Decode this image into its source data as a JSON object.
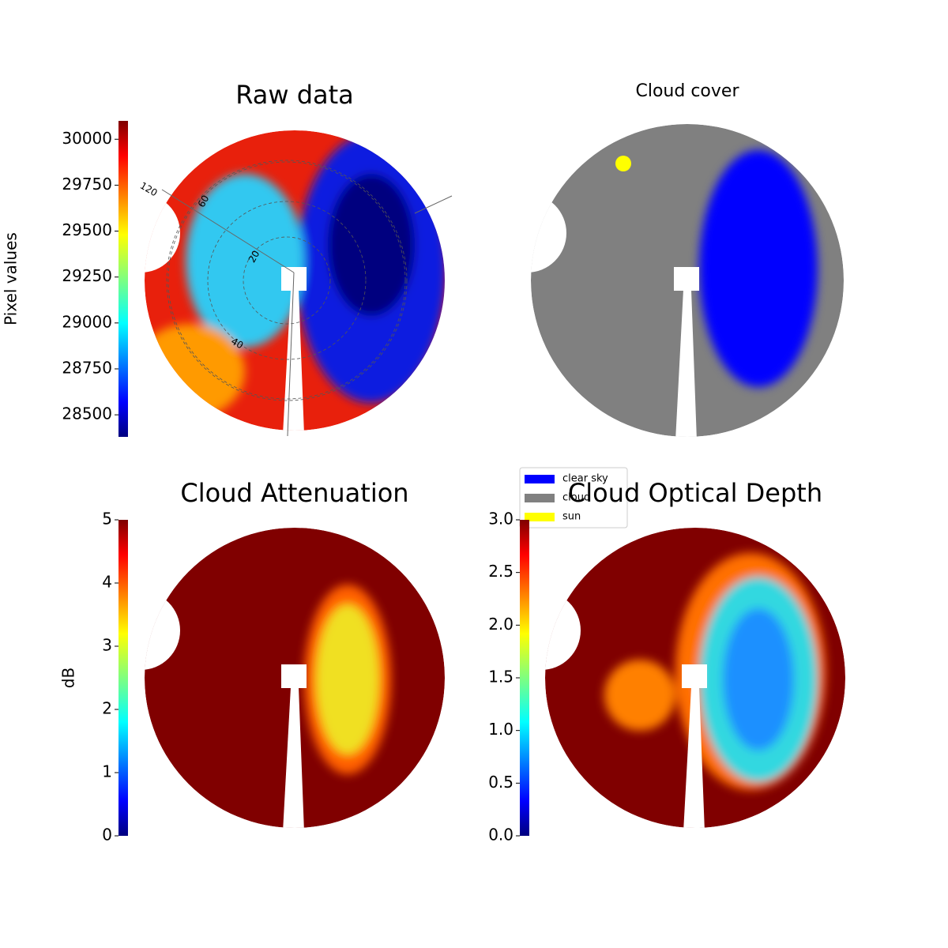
{
  "chart_data": [
    {
      "type": "image",
      "title": "Raw data",
      "ylabel": "Pixel values",
      "colormap": "jet",
      "ylim": [
        28380,
        30100
      ],
      "yticks": [
        28500,
        28750,
        29000,
        29250,
        29500,
        29750,
        30000
      ],
      "annotations": [
        "120",
        "60",
        "20",
        "40"
      ]
    },
    {
      "type": "image",
      "title": "Cloud cover",
      "legend": [
        {
          "name": "clear sky",
          "color": "#0000ff"
        },
        {
          "name": "cloud",
          "color": "#808080"
        },
        {
          "name": "sun",
          "color": "#ffff00"
        }
      ]
    },
    {
      "type": "image",
      "title": "Cloud Attenuation",
      "ylabel": "dB",
      "colormap": "jet",
      "ylim": [
        0,
        5
      ],
      "yticks": [
        0,
        1,
        2,
        3,
        4,
        5
      ]
    },
    {
      "type": "image",
      "title": "Cloud Optical Depth",
      "colormap": "jet",
      "ylim": [
        0,
        3
      ],
      "yticks": [
        {
          "value": 0,
          "label": "0.0"
        },
        0.5,
        {
          "value": 1,
          "label": "1.0"
        },
        1.5,
        {
          "value": 2,
          "label": "2.0"
        },
        2.5,
        {
          "value": 3,
          "label": "3.0"
        }
      ]
    }
  ]
}
